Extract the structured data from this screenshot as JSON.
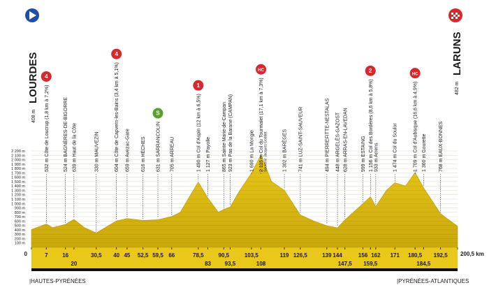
{
  "chart_data": {
    "type": "area",
    "start": {
      "name": "LOURDES",
      "altitude": "408 m"
    },
    "finish": {
      "name": "LARUNS",
      "altitude": "482 m"
    },
    "regions": [
      "|HAUTES-PYRÉNÉES",
      "|PYRÉNÉES-ATLANTIQUES"
    ],
    "color": "#e9c81a",
    "grid": true,
    "x": [
      0,
      7,
      10,
      16,
      20,
      25,
      30.5,
      40,
      45,
      52.5,
      59.5,
      66,
      70,
      78.5,
      83,
      88,
      90.5,
      93.5,
      98,
      103.5,
      108,
      113,
      119,
      126.5,
      133,
      139,
      144,
      147.5,
      156,
      159.5,
      162,
      167,
      171,
      176,
      180.5,
      184.5,
      192.5,
      200.5
    ],
    "values": [
      408,
      532,
      450,
      524,
      639,
      450,
      330,
      604,
      659,
      616,
      631,
      705,
      800,
      1490,
      1127,
      800,
      865,
      923,
      1300,
      1690,
      2115,
      1500,
      1302,
      741,
      600,
      494,
      448,
      628,
      999,
      1156,
      933,
      1300,
      1474,
      1400,
      1709,
      1360,
      768,
      482
    ],
    "xlim": [
      0,
      200.5
    ],
    "ylim": [
      0,
      2200
    ],
    "xticks": [
      0,
      7,
      16,
      20,
      {
        "value": 30.5,
        "label": "30,5"
      },
      40,
      45,
      {
        "value": 52.5,
        "label": "52,5"
      },
      {
        "value": 59.5,
        "label": "59,5"
      },
      66,
      {
        "value": 78.5,
        "label": "78,5"
      },
      83,
      {
        "value": 90.5,
        "label": "90,5"
      },
      {
        "value": 93.5,
        "label": "93,5"
      },
      {
        "value": 103.5,
        "label": "103,5"
      },
      108,
      119,
      {
        "value": 126.5,
        "label": "126,5"
      },
      139,
      144,
      {
        "value": 147.5,
        "label": "147,5"
      },
      156,
      {
        "value": 159.5,
        "label": "159,5"
      },
      162,
      171,
      {
        "value": 180.5,
        "label": "180,5"
      },
      {
        "value": 184.5,
        "label": "184,5"
      },
      {
        "value": 192.5,
        "label": "192,5"
      },
      {
        "value": 200.5,
        "label": "200,5 km"
      }
    ],
    "yticks": [
      {
        "value": 100,
        "label": "100 m"
      },
      {
        "value": 200,
        "label": "200 m"
      },
      {
        "value": 300,
        "label": "300 m"
      },
      {
        "value": 400,
        "label": "400 m"
      },
      {
        "value": 500,
        "label": "500 m"
      },
      {
        "value": 600,
        "label": "600 m"
      },
      {
        "value": 700,
        "label": "700 m"
      },
      {
        "value": 800,
        "label": "800 m"
      },
      {
        "value": 900,
        "label": "900 m"
      },
      {
        "value": 1000,
        "label": "1 000 m"
      },
      {
        "value": 1100,
        "label": "1 100 m"
      },
      {
        "value": 1200,
        "label": "1 200 m"
      },
      {
        "value": 1300,
        "label": "1 300 m"
      },
      {
        "value": 1400,
        "label": "1 400 m"
      },
      {
        "value": 1500,
        "label": "1 500 m"
      },
      {
        "value": 1600,
        "label": "1 600 m"
      },
      {
        "value": 1700,
        "label": "1 700 m"
      },
      {
        "value": 1800,
        "label": "1 800 m"
      },
      {
        "value": 1900,
        "label": "1 900 m"
      },
      {
        "value": 2000,
        "label": "2 000 m"
      },
      {
        "value": 2100,
        "label": "2 100 m"
      },
      {
        "value": 2200,
        "label": "2 200 m"
      }
    ],
    "waypoints": [
      {
        "km": 7,
        "label": "532 m Côte de Loucrup (1,8 km à 7,2%)",
        "badge": "4"
      },
      {
        "km": 16,
        "label": "524 m BAGNÈRES-DE-BIGORRE"
      },
      {
        "km": 20,
        "label": "639 m Haut de la Côte"
      },
      {
        "km": 30.5,
        "label": "330 m MAUVEZIN"
      },
      {
        "km": 40,
        "label": "604 m Côte de Capvern-les-Bains (3,4 km à 5,1%)",
        "badge": "4"
      },
      {
        "km": 45,
        "label": "659 m Avezac-Gare"
      },
      {
        "km": 52.5,
        "label": "616 m HÈCHES"
      },
      {
        "km": 59.5,
        "label": "631 m SARRANCOLIN",
        "badge": "S"
      },
      {
        "km": 66,
        "label": "705 m ARREAU"
      },
      {
        "km": 78.5,
        "label": "1 490 m Col d'Aspin (12 km à 6,5%)",
        "badge": "1"
      },
      {
        "km": 83,
        "label": "1 127 m Payolle"
      },
      {
        "km": 90.5,
        "label": "865 m Sainte-Marie-de-Campan"
      },
      {
        "km": 93.5,
        "label": "923 m Pas de la Barane (CAMPAN)"
      },
      {
        "km": 103.5,
        "label": "1 690 m La Mongie"
      },
      {
        "km": 108,
        "label": "2 115 m Col du Tourmalet (17,1 km à 7,3%)",
        "badge": "HC",
        "note": "Souvenir Jacques Goddet"
      },
      {
        "km": 119,
        "label": "1 302 m BARÈGES"
      },
      {
        "km": 126.5,
        "label": "741 m LUZ-SAINT-SAUVEUR"
      },
      {
        "km": 139,
        "label": "494 m PIERREFITTE-NESTALAS"
      },
      {
        "km": 144,
        "label": "448 m ARGELÈS-GAZOST"
      },
      {
        "km": 147.5,
        "label": "628 m ARRAS-EN-LAVEDAN"
      },
      {
        "km": 156,
        "label": "999 m ESTAING"
      },
      {
        "km": 159.5,
        "label": "1 156 m Col des Bordères (8,6 km à 5,8%)",
        "badge": "2"
      },
      {
        "km": 162,
        "label": "933 m Arrens"
      },
      {
        "km": 171,
        "label": "1 474 m Col du Soulor"
      },
      {
        "km": 180.5,
        "label": "1 709 m Col d'Aubisque (16,6 km à 4,9%)",
        "badge": "HC"
      },
      {
        "km": 184.5,
        "label": "1 360 m Gourette"
      },
      {
        "km": 192.5,
        "label": "768 m EAUX-BONNES"
      }
    ]
  }
}
